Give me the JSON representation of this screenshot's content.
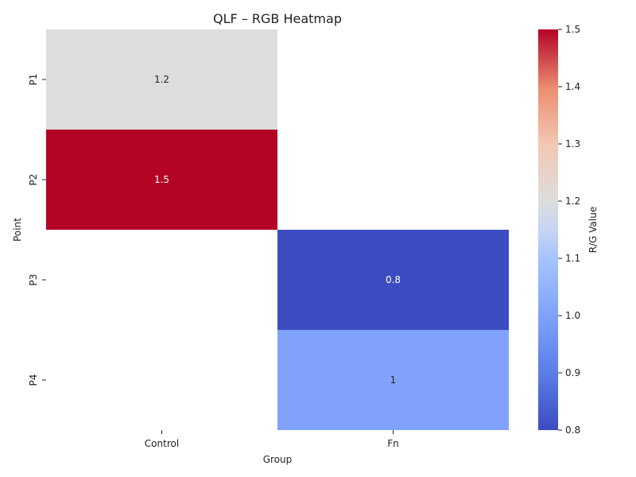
{
  "chart_data": {
    "type": "heatmap",
    "title": "QLF – RGB Heatmap",
    "xlabel": "Group",
    "ylabel": "Point",
    "x_categories": [
      "Control",
      "Fn"
    ],
    "y_categories": [
      "P1",
      "P2",
      "P3",
      "P4"
    ],
    "cells": [
      {
        "y": "P1",
        "x": "Control",
        "value": 1.2,
        "label": "1.2"
      },
      {
        "y": "P2",
        "x": "Control",
        "value": 1.5,
        "label": "1.5"
      },
      {
        "y": "P3",
        "x": "Fn",
        "value": 0.8,
        "label": "0.8"
      },
      {
        "y": "P4",
        "x": "Fn",
        "value": 1.0,
        "label": "1"
      }
    ],
    "colorbar": {
      "label": "R/G Value",
      "range": [
        0.8,
        1.5
      ],
      "ticks": [
        "0.8",
        "0.9",
        "1.0",
        "1.1",
        "1.2",
        "1.3",
        "1.4",
        "1.5"
      ],
      "colormap": "coolwarm"
    }
  }
}
